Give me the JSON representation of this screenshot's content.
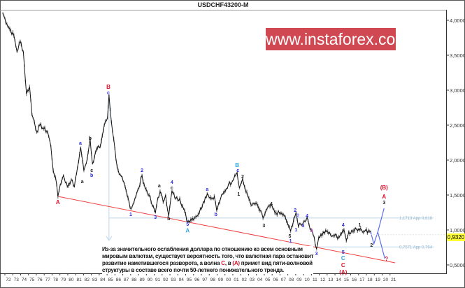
{
  "chart_data": {
    "type": "line",
    "title": "USDCHF43200-M",
    "xlim": [
      1971.0,
      2021.6
    ],
    "ylim": [
      0.35,
      4.1
    ],
    "y_ticks": [
      {
        "v": 4.0,
        "label": "4,0000"
      },
      {
        "v": 3.5,
        "label": "3,5000"
      },
      {
        "v": 3.0,
        "label": "3,0000"
      },
      {
        "v": 2.5,
        "label": "2,5000"
      },
      {
        "v": 2.0,
        "label": "2,0000"
      },
      {
        "v": 1.5,
        "label": "1,5000"
      },
      {
        "v": 1.0,
        "label": "1,0000"
      },
      {
        "v": 0.5,
        "label": "0,5000"
      }
    ],
    "x_ticks": [
      "72",
      "73",
      "74",
      "75",
      "76",
      "77",
      "78",
      "79",
      "80",
      "81",
      "82",
      "83",
      "84",
      "85",
      "86",
      "87",
      "88",
      "89",
      "90",
      "91",
      "92",
      "93",
      "94",
      "95",
      "96",
      "97",
      "98",
      "99",
      "00",
      "01",
      "02",
      "03",
      "04",
      "05",
      "06",
      "07",
      "08",
      "09",
      "10",
      "11",
      "12",
      "13",
      "14",
      "15",
      "16",
      "17",
      "18",
      "19",
      "20",
      "21"
    ],
    "current_price": {
      "value": 0.932,
      "label": "0,9320",
      "color": "#ffff33"
    },
    "price_series": [
      [
        1971.3,
        4.1
      ],
      [
        1971.8,
        3.95
      ],
      [
        1972.3,
        3.85
      ],
      [
        1972.7,
        3.78
      ],
      [
        1973.1,
        3.55
      ],
      [
        1973.5,
        3.7
      ],
      [
        1973.9,
        3.55
      ],
      [
        1974.3,
        2.95
      ],
      [
        1974.7,
        3.05
      ],
      [
        1975.0,
        2.65
      ],
      [
        1975.3,
        2.55
      ],
      [
        1975.6,
        2.4
      ],
      [
        1976,
        2.5
      ],
      [
        1976.5,
        2.45
      ],
      [
        1977,
        2.4
      ],
      [
        1977.4,
        2.2
      ],
      [
        1977.7,
        1.85
      ],
      [
        1978.0,
        1.75
      ],
      [
        1978.3,
        1.48
      ],
      [
        1978.6,
        1.65
      ],
      [
        1979,
        1.78
      ],
      [
        1979.5,
        1.62
      ],
      [
        1980,
        1.72
      ],
      [
        1980.4,
        1.62
      ],
      [
        1980.8,
        1.9
      ],
      [
        1981.2,
        2.18
      ],
      [
        1981.6,
        1.85
      ],
      [
        1981.9,
        1.95
      ],
      [
        1982.4,
        2.3
      ],
      [
        1982.7,
        1.95
      ],
      [
        1983.2,
        2.15
      ],
      [
        1983.7,
        2.2
      ],
      [
        1984.2,
        2.5
      ],
      [
        1984.6,
        2.6
      ],
      [
        1984.8,
        2.93
      ],
      [
        1985.1,
        2.55
      ],
      [
        1985.4,
        2.3
      ],
      [
        1985.7,
        2.0
      ],
      [
        1986.1,
        1.8
      ],
      [
        1986.6,
        1.7
      ],
      [
        1987.1,
        1.5
      ],
      [
        1987.6,
        1.3
      ],
      [
        1988.1,
        1.45
      ],
      [
        1988.6,
        1.6
      ],
      [
        1989.0,
        1.78
      ],
      [
        1989.4,
        1.6
      ],
      [
        1989.9,
        1.5
      ],
      [
        1990.3,
        1.35
      ],
      [
        1990.7,
        1.25
      ],
      [
        1991.0,
        1.45
      ],
      [
        1991.3,
        1.55
      ],
      [
        1991.7,
        1.4
      ],
      [
        1992.0,
        1.5
      ],
      [
        1992.4,
        1.2
      ],
      [
        1992.8,
        1.55
      ],
      [
        1993.3,
        1.45
      ],
      [
        1993.8,
        1.45
      ],
      [
        1994.3,
        1.3
      ],
      [
        1994.8,
        1.12
      ],
      [
        1995.2,
        1.15
      ],
      [
        1995.7,
        1.18
      ],
      [
        1996.3,
        1.25
      ],
      [
        1996.8,
        1.4
      ],
      [
        1997.3,
        1.52
      ],
      [
        1997.8,
        1.45
      ],
      [
        1998.2,
        1.48
      ],
      [
        1998.5,
        1.28
      ],
      [
        1999,
        1.45
      ],
      [
        1999.5,
        1.55
      ],
      [
        2000,
        1.65
      ],
      [
        2000.5,
        1.7
      ],
      [
        2000.8,
        1.78
      ],
      [
        2001.1,
        1.82
      ],
      [
        2001.4,
        1.6
      ],
      [
        2001.8,
        1.73
      ],
      [
        2002.2,
        1.55
      ],
      [
        2002.6,
        1.45
      ],
      [
        2003,
        1.35
      ],
      [
        2003.5,
        1.38
      ],
      [
        2004,
        1.28
      ],
      [
        2004.4,
        1.17
      ],
      [
        2004.9,
        1.3
      ],
      [
        2005.4,
        1.35
      ],
      [
        2005.9,
        1.25
      ],
      [
        2006.5,
        1.24
      ],
      [
        2007,
        1.22
      ],
      [
        2007.5,
        1.1
      ],
      [
        2007.9,
        0.98
      ],
      [
        2008.3,
        1.15
      ],
      [
        2008.6,
        1.25
      ],
      [
        2008.9,
        1.05
      ],
      [
        2009.5,
        1.1
      ],
      [
        2010,
        1.18
      ],
      [
        2010.5,
        1.0
      ],
      [
        2010.9,
        0.9
      ],
      [
        2011.2,
        0.73
      ],
      [
        2011.5,
        0.9
      ],
      [
        2012,
        0.95
      ],
      [
        2012.5,
        0.98
      ],
      [
        2013,
        0.93
      ],
      [
        2013.5,
        0.92
      ],
      [
        2014,
        0.9
      ],
      [
        2014.5,
        0.98
      ],
      [
        2014.7,
        1.0
      ],
      [
        2015.0,
        0.85
      ],
      [
        2015.3,
        0.97
      ],
      [
        2015.8,
        0.98
      ],
      [
        2016.3,
        1.01
      ],
      [
        2016.8,
        1.02
      ],
      [
        2017.3,
        0.98
      ],
      [
        2017.8,
        0.99
      ],
      [
        2018.1,
        0.97
      ]
    ],
    "projection_up": [
      [
        2018.1,
        0.97
      ],
      [
        2018.5,
        0.8
      ],
      [
        2019.0,
        0.97
      ],
      [
        2019.8,
        1.31
      ]
    ],
    "projection_down": [
      [
        2019.0,
        0.97
      ],
      [
        2019.9,
        0.59
      ]
    ],
    "trendline": [
      [
        1978.3,
        1.48
      ],
      [
        2021.2,
        0.53
      ]
    ],
    "vertical_marker": {
      "x": 1984.8,
      "from": 2.93,
      "to": 0.85
    },
    "fib_levels": [
      {
        "value": 1.1713,
        "label": "1,1713 App 0,618",
        "from": 1984.8
      },
      {
        "value": 0.7571,
        "label": "0,7571 App 0,764",
        "from": 1984.8
      }
    ],
    "wave_labels": [
      {
        "x": 1984.72,
        "y": 3.05,
        "t": "B",
        "c": "#e0102a"
      },
      {
        "x": 1984.72,
        "y": 2.97,
        "t": "c",
        "c": "#2a2ae0"
      },
      {
        "x": 1978.3,
        "y": 1.4,
        "t": "A",
        "c": "#e0102a"
      },
      {
        "x": 1981.16,
        "y": 2.25,
        "t": "a",
        "c": "#2a2ae0"
      },
      {
        "x": 1982.4,
        "y": 2.32,
        "t": "b",
        "c": "#222"
      },
      {
        "x": 1982.6,
        "y": 1.86,
        "t": "c",
        "c": "#222"
      },
      {
        "x": 1982.6,
        "y": 1.79,
        "t": "b",
        "c": "#2a2ae0"
      },
      {
        "x": 1981.4,
        "y": 1.7,
        "t": "a",
        "c": "#222"
      },
      {
        "x": 1989.0,
        "y": 1.86,
        "t": "2",
        "c": "#2a2ae0"
      },
      {
        "x": 1987.57,
        "y": 1.23,
        "t": "1",
        "c": "#2a2ae0"
      },
      {
        "x": 1990.7,
        "y": 1.19,
        "t": "3",
        "c": "#2a2ae0"
      },
      {
        "x": 1991.2,
        "y": 1.64,
        "t": "a",
        "c": "#222"
      },
      {
        "x": 1992.8,
        "y": 1.69,
        "t": "4",
        "c": "#2a2ae0"
      },
      {
        "x": 1992.8,
        "y": 1.61,
        "t": "c",
        "c": "#222"
      },
      {
        "x": 1992.4,
        "y": 1.17,
        "t": "b",
        "c": "#222"
      },
      {
        "x": 1994.8,
        "y": 1.09,
        "t": "5",
        "c": "#2a2ae0"
      },
      {
        "x": 1994.8,
        "y": 1.01,
        "t": "A",
        "c": "#33a3dc"
      },
      {
        "x": 1997.3,
        "y": 1.59,
        "t": "a",
        "c": "#2a2ae0"
      },
      {
        "x": 1998.4,
        "y": 1.23,
        "t": "b",
        "c": "#2a2ae0"
      },
      {
        "x": 2001.1,
        "y": 1.93,
        "t": "B",
        "c": "#33a3dc"
      },
      {
        "x": 2001.2,
        "y": 1.86,
        "t": "c",
        "c": "#2a2ae0"
      },
      {
        "x": 2001.8,
        "y": 1.77,
        "t": "2",
        "c": "#222"
      },
      {
        "x": 2001.3,
        "y": 1.52,
        "t": "1",
        "c": "#222"
      },
      {
        "x": 2005.45,
        "y": 1.38,
        "t": "4",
        "c": "#222"
      },
      {
        "x": 2004.5,
        "y": 1.07,
        "t": "3",
        "c": "#222"
      },
      {
        "x": 2008.5,
        "y": 1.29,
        "t": "2",
        "c": "#2a2ae0"
      },
      {
        "x": 2008.85,
        "y": 1.26,
        "t": "2",
        "c": "#7a7af0"
      },
      {
        "x": 2008.6,
        "y": 1.01,
        "t": "1",
        "c": "#2a2ae0"
      },
      {
        "x": 2007.8,
        "y": 0.92,
        "t": "5",
        "c": "#222"
      },
      {
        "x": 2007.9,
        "y": 0.85,
        "t": "1",
        "c": "#2a2ae0"
      },
      {
        "x": 2009.5,
        "y": 1.07,
        "t": "3",
        "c": "#2a2ae0"
      },
      {
        "x": 2010.0,
        "y": 1.21,
        "t": "4",
        "c": "#2a2ae0"
      },
      {
        "x": 2010.6,
        "y": 1.0,
        "t": "1",
        "c": "#e040e0"
      },
      {
        "x": 2011.2,
        "y": 0.67,
        "t": "3",
        "c": "#2a2ae0"
      },
      {
        "x": 2014.6,
        "y": 1.08,
        "t": "4",
        "c": "#2a2ae0"
      },
      {
        "x": 2014.6,
        "y": 0.69,
        "t": "5",
        "c": "#2a2ae0"
      },
      {
        "x": 2014.6,
        "y": 0.6,
        "t": "C",
        "c": "#33a3dc"
      },
      {
        "x": 2014.6,
        "y": 0.5,
        "t": "C",
        "c": "#e0102a"
      },
      {
        "x": 2014.6,
        "y": 0.4,
        "t": "(A)",
        "c": "#e0102a"
      },
      {
        "x": 2016.7,
        "y": 1.08,
        "t": "1",
        "c": "#222"
      },
      {
        "x": 2018.2,
        "y": 0.79,
        "t": "2",
        "c": "#222"
      },
      {
        "x": 2019.8,
        "y": 1.61,
        "t": "(B)",
        "c": "#e0102a"
      },
      {
        "x": 2019.8,
        "y": 1.48,
        "t": "A",
        "c": "#e0102a"
      },
      {
        "x": 2019.8,
        "y": 1.4,
        "t": "3",
        "c": "#222"
      },
      {
        "x": 2020.1,
        "y": 0.59,
        "t": "?",
        "c": "#e0102a"
      }
    ]
  },
  "note": {
    "line1": "Из-за значительного ослабления доллара по отношению ко всем основным",
    "line2": "мировым валютам, существует вероятность того, что валютная пара остановит",
    "line3_a": "развитие наметившегося разворота, а волна ",
    "line3_c": "C",
    "line3_b": ", в ",
    "line3_A": "(A)",
    "line3_d": " примет вид пяти-волновой",
    "line4": "структуры в составе всего почти 50-летнего понижательного тренда."
  },
  "watermark": "www.instaforex.com"
}
